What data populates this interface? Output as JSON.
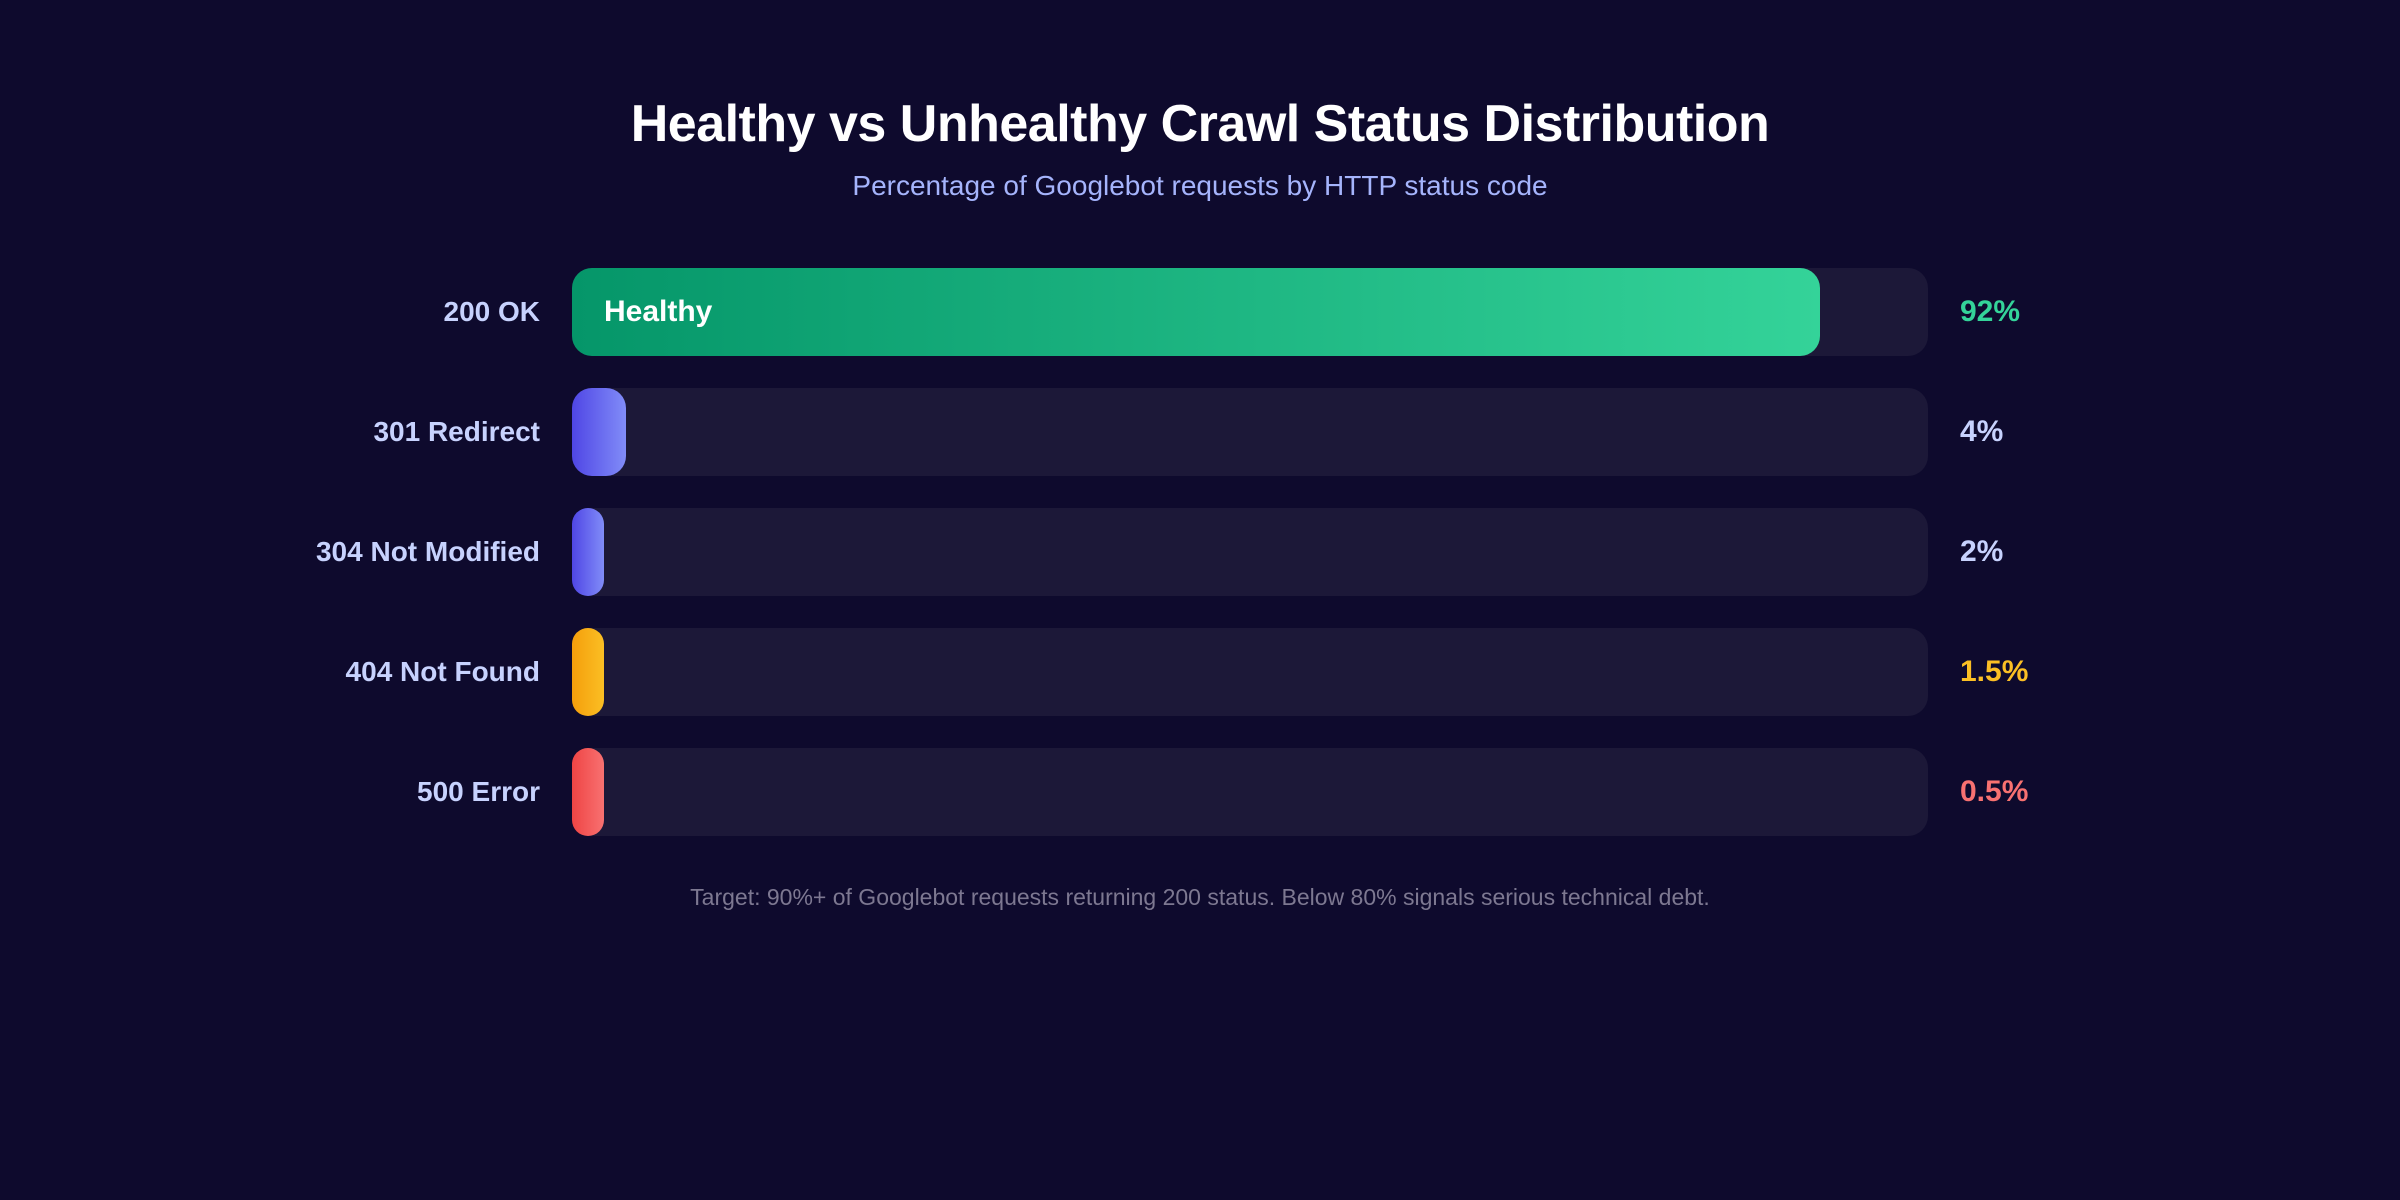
{
  "chart_data": {
    "type": "bar",
    "orientation": "horizontal",
    "title": "Healthy vs Unhealthy Crawl Status Distribution",
    "subtitle": "Percentage of Googlebot requests by HTTP status code",
    "categories": [
      "200 OK",
      "301 Redirect",
      "304 Not Modified",
      "404 Not Found",
      "500 Error"
    ],
    "values": [
      92,
      4,
      2,
      1.5,
      0.5
    ],
    "value_labels": [
      "92%",
      "4%",
      "2%",
      "1.5%",
      "0.5%"
    ],
    "bar_annotations": [
      "Healthy",
      "",
      "",
      "",
      ""
    ],
    "xlim": [
      0,
      100
    ],
    "grid": false,
    "colors": [
      {
        "from": "#059669",
        "to": "#34d399",
        "label": "#34d399"
      },
      {
        "from": "#4f46e5",
        "to": "#818cf8",
        "label": "#c7d2fe"
      },
      {
        "from": "#4f46e5",
        "to": "#818cf8",
        "label": "#c7d2fe"
      },
      {
        "from": "#f59e0b",
        "to": "#fbbf24",
        "label": "#fbbf24"
      },
      {
        "from": "#ef4444",
        "to": "#f87171",
        "label": "#f87171"
      }
    ],
    "footnote": "Target: 90%+ of Googlebot requests returning 200 status. Below 80% signals serious technical debt."
  }
}
